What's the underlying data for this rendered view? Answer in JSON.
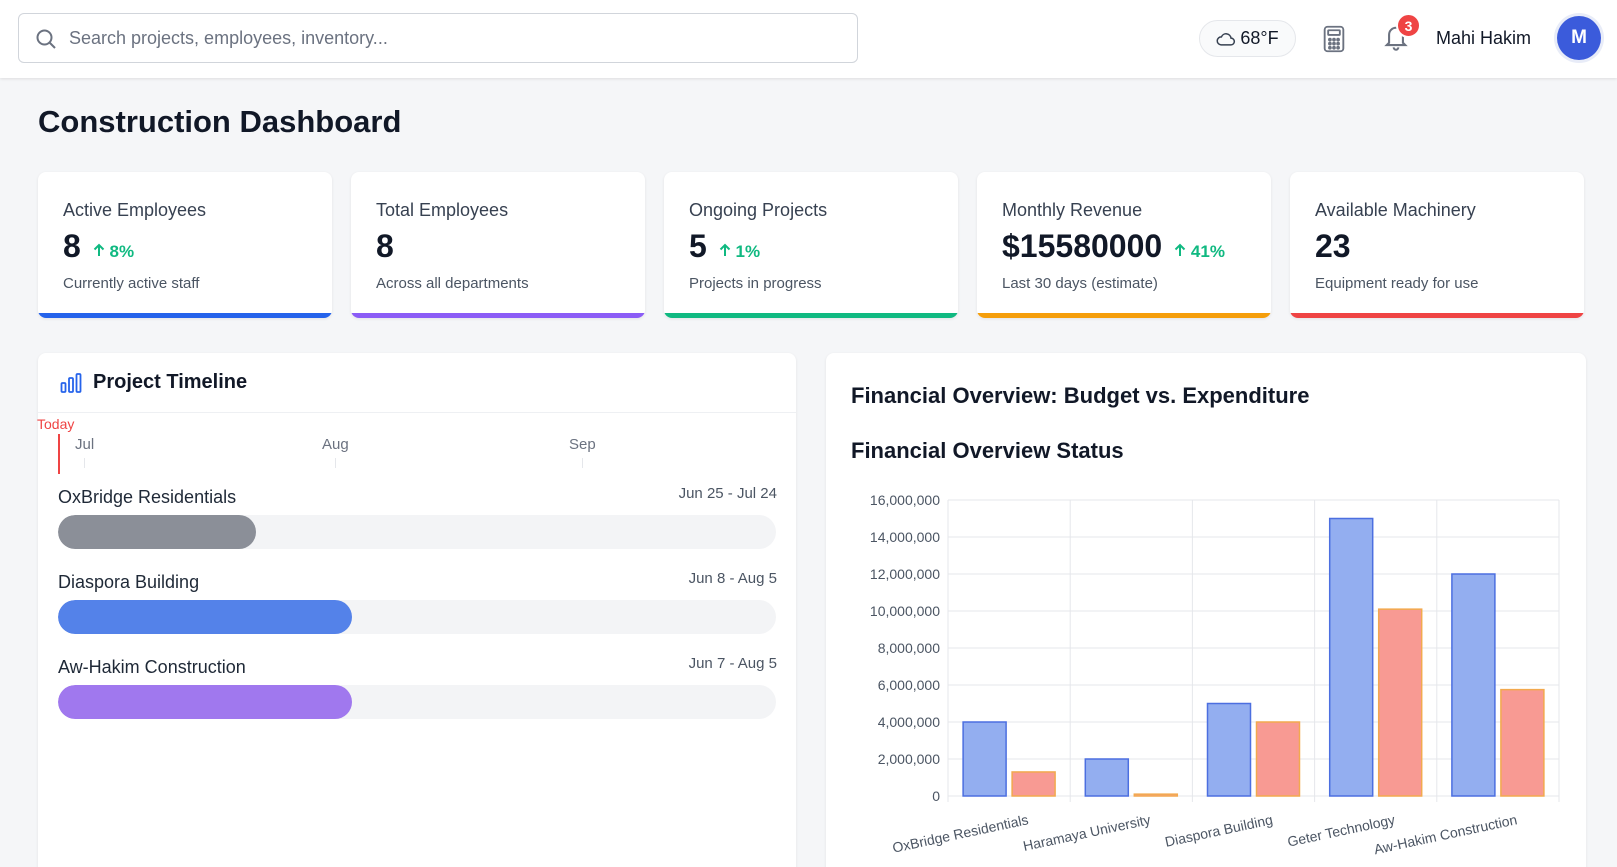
{
  "search": {
    "placeholder": "Search projects, employees, inventory..."
  },
  "header": {
    "weather": "68°F",
    "notifications_count": "3",
    "user_name": "Mahi Hakim",
    "avatar_initial": "M"
  },
  "page": {
    "title": "Construction Dashboard"
  },
  "stats": [
    {
      "label": "Active Employees",
      "value": "8",
      "change": "8%",
      "sub": "Currently active staff",
      "color": "#2563eb"
    },
    {
      "label": "Total Employees",
      "value": "8",
      "change": "",
      "sub": "Across all departments",
      "color": "#8b5cf6"
    },
    {
      "label": "Ongoing Projects",
      "value": "5",
      "change": "1%",
      "sub": "Projects in progress",
      "color": "#10b981"
    },
    {
      "label": "Monthly Revenue",
      "value": "$15580000",
      "change": "41%",
      "sub": "Last 30 days (estimate)",
      "color": "#f59e0b"
    },
    {
      "label": "Available Machinery",
      "value": "23",
      "change": "",
      "sub": "Equipment ready for use",
      "color": "#ef4444"
    }
  ],
  "timeline": {
    "title": "Project Timeline",
    "today_label": "Today",
    "months": [
      "Jul",
      "Aug",
      "Sep"
    ],
    "projects": [
      {
        "name": "OxBridge Residentials",
        "dates": "Jun 25 - Jul 24",
        "color": "#8b8f98",
        "progress": 0.276
      },
      {
        "name": "Diaspora Building",
        "dates": "Jun 8 - Aug 5",
        "color": "#5482e9",
        "progress": 0.41
      },
      {
        "name": "Aw-Hakim Construction",
        "dates": "Jun 7 - Aug 5",
        "color": "#a078ee",
        "progress": 0.41
      }
    ]
  },
  "financial": {
    "title": "Financial Overview: Budget vs. Expenditure",
    "chart_title": "Financial Overview Status"
  },
  "chart_data": {
    "type": "bar",
    "title": "Financial Overview Status",
    "categories": [
      "OxBridge Residentials",
      "Haramaya University",
      "Diaspora Building",
      "Geter Technology",
      "Aw-Hakim Construction"
    ],
    "series": [
      {
        "values": [
          4000000,
          2000000,
          5000000,
          15000000,
          12000000
        ],
        "color": "#93aef0",
        "border": "#4c6fe0"
      },
      {
        "values": [
          1300000,
          100000,
          4000000,
          10100000,
          5750000
        ],
        "color": "#f89a93",
        "border": "#f2a94e"
      }
    ],
    "ylim": [
      0,
      16000000
    ],
    "yticks": [
      "16,000,000",
      "14,000,000",
      "12,000,000",
      "10,000,000",
      "8,000,000",
      "6,000,000",
      "4,000,000",
      "2,000,000",
      "0"
    ],
    "grid": true
  }
}
